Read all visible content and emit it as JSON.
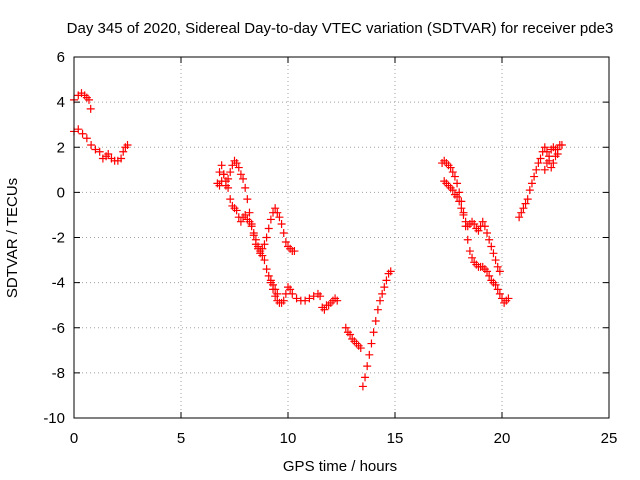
{
  "chart_data": {
    "type": "scatter",
    "title": "Day 345 of 2020, Sidereal Day-to-day VTEC variation (SDTVAR) for receiver pde3",
    "xlabel": "GPS time / hours",
    "ylabel": "SDTVAR / TECUs",
    "xlim": [
      0,
      25
    ],
    "ylim": [
      -10,
      6
    ],
    "xticks": [
      0,
      5,
      10,
      15,
      20,
      25
    ],
    "yticks": [
      -10,
      -8,
      -6,
      -4,
      -2,
      0,
      2,
      4,
      6
    ],
    "grid": true,
    "marker": "+",
    "color": "#ff0000",
    "segments": [
      [
        [
          0.0,
          4.1
        ],
        [
          0.2,
          4.3
        ],
        [
          0.35,
          4.4
        ],
        [
          0.5,
          4.3
        ],
        [
          0.6,
          4.2
        ],
        [
          0.7,
          4.1
        ],
        [
          0.78,
          3.7
        ]
      ],
      [
        [
          0.0,
          2.7
        ],
        [
          0.2,
          2.8
        ],
        [
          0.4,
          2.6
        ],
        [
          0.6,
          2.4
        ],
        [
          0.8,
          2.1
        ],
        [
          1.0,
          1.9
        ],
        [
          1.2,
          1.8
        ],
        [
          1.35,
          1.5
        ],
        [
          1.5,
          1.6
        ],
        [
          1.6,
          1.7
        ],
        [
          1.75,
          1.5
        ],
        [
          1.9,
          1.4
        ],
        [
          2.05,
          1.4
        ],
        [
          2.2,
          1.5
        ],
        [
          2.3,
          1.8
        ],
        [
          2.4,
          2.0
        ],
        [
          2.5,
          2.1
        ]
      ],
      [
        [
          6.7,
          0.4
        ],
        [
          6.8,
          0.9
        ],
        [
          6.9,
          1.2
        ],
        [
          7.0,
          0.8
        ],
        [
          7.1,
          0.3
        ],
        [
          7.2,
          0.6
        ],
        [
          7.3,
          0.9
        ],
        [
          7.4,
          1.2
        ],
        [
          7.5,
          1.4
        ],
        [
          7.6,
          1.3
        ],
        [
          7.7,
          1.1
        ],
        [
          7.8,
          0.8
        ],
        [
          7.9,
          0.6
        ],
        [
          8.0,
          0.2
        ],
        [
          8.1,
          -0.3
        ],
        [
          8.2,
          -0.9
        ],
        [
          8.3,
          -1.4
        ],
        [
          8.4,
          -1.9
        ],
        [
          8.5,
          -2.3
        ],
        [
          8.6,
          -2.5
        ],
        [
          8.7,
          -2.7
        ],
        [
          8.8,
          -2.8
        ],
        [
          8.9,
          -3.0
        ],
        [
          9.0,
          -3.4
        ],
        [
          9.1,
          -3.7
        ],
        [
          9.2,
          -3.9
        ],
        [
          9.3,
          -4.1
        ],
        [
          9.4,
          -4.3
        ],
        [
          9.5,
          -4.5
        ]
      ],
      [
        [
          6.8,
          0.3
        ],
        [
          6.9,
          0.5
        ],
        [
          7.0,
          0.8
        ],
        [
          7.1,
          0.5
        ],
        [
          7.2,
          0.2
        ],
        [
          7.3,
          -0.3
        ],
        [
          7.4,
          -0.6
        ],
        [
          7.5,
          -0.7
        ],
        [
          7.6,
          -0.8
        ],
        [
          7.7,
          -1.1
        ],
        [
          7.8,
          -1.3
        ],
        [
          7.9,
          -1.1
        ],
        [
          8.0,
          -1.0
        ],
        [
          8.1,
          -1.2
        ],
        [
          8.2,
          -1.3
        ],
        [
          8.3,
          -1.5
        ],
        [
          8.4,
          -1.8
        ],
        [
          8.5,
          -2.1
        ],
        [
          8.6,
          -2.4
        ],
        [
          8.7,
          -2.6
        ],
        [
          8.8,
          -2.5
        ],
        [
          8.9,
          -2.3
        ],
        [
          9.0,
          -2.0
        ],
        [
          9.1,
          -1.6
        ],
        [
          9.2,
          -1.2
        ],
        [
          9.3,
          -0.9
        ],
        [
          9.4,
          -0.7
        ],
        [
          9.5,
          -0.9
        ],
        [
          9.6,
          -1.1
        ],
        [
          9.7,
          -1.4
        ],
        [
          9.8,
          -1.8
        ],
        [
          9.9,
          -2.2
        ],
        [
          10.0,
          -2.4
        ],
        [
          10.1,
          -2.5
        ],
        [
          10.2,
          -2.6
        ],
        [
          10.3,
          -2.6
        ]
      ],
      [
        [
          9.2,
          -4.0
        ],
        [
          9.3,
          -4.3
        ],
        [
          9.4,
          -4.6
        ],
        [
          9.5,
          -4.8
        ],
        [
          9.6,
          -4.9
        ],
        [
          9.7,
          -4.9
        ],
        [
          9.8,
          -4.8
        ],
        [
          9.9,
          -4.5
        ],
        [
          10.0,
          -4.2
        ],
        [
          10.1,
          -4.3
        ],
        [
          10.2,
          -4.5
        ],
        [
          10.4,
          -4.7
        ],
        [
          10.6,
          -4.8
        ],
        [
          10.8,
          -4.8
        ],
        [
          11.0,
          -4.7
        ],
        [
          11.2,
          -4.6
        ],
        [
          11.4,
          -4.5
        ],
        [
          11.5,
          -4.6
        ]
      ],
      [
        [
          11.6,
          -5.1
        ],
        [
          11.7,
          -5.2
        ],
        [
          11.8,
          -5.0
        ],
        [
          11.9,
          -5.0
        ],
        [
          12.0,
          -4.9
        ],
        [
          12.1,
          -4.8
        ],
        [
          12.2,
          -4.7
        ],
        [
          12.3,
          -4.8
        ]
      ],
      [
        [
          12.7,
          -6.0
        ],
        [
          12.8,
          -6.2
        ],
        [
          12.9,
          -6.3
        ],
        [
          13.0,
          -6.5
        ],
        [
          13.1,
          -6.6
        ],
        [
          13.2,
          -6.7
        ],
        [
          13.3,
          -6.8
        ],
        [
          13.4,
          -6.9
        ]
      ],
      [
        [
          13.5,
          -8.6
        ],
        [
          13.6,
          -8.2
        ],
        [
          13.7,
          -7.7
        ],
        [
          13.8,
          -7.2
        ],
        [
          13.9,
          -6.7
        ],
        [
          14.0,
          -6.2
        ],
        [
          14.1,
          -5.7
        ],
        [
          14.2,
          -5.2
        ],
        [
          14.3,
          -4.8
        ],
        [
          14.4,
          -4.5
        ],
        [
          14.5,
          -4.2
        ],
        [
          14.6,
          -3.9
        ],
        [
          14.7,
          -3.6
        ],
        [
          14.8,
          -3.5
        ]
      ],
      [
        [
          17.2,
          1.3
        ],
        [
          17.3,
          1.4
        ],
        [
          17.4,
          1.3
        ],
        [
          17.5,
          1.2
        ],
        [
          17.6,
          1.1
        ],
        [
          17.7,
          0.9
        ],
        [
          17.8,
          0.7
        ],
        [
          17.9,
          0.4
        ],
        [
          18.0,
          0.0
        ],
        [
          18.1,
          -0.4
        ],
        [
          18.2,
          -0.9
        ],
        [
          18.3,
          -1.5
        ],
        [
          18.4,
          -2.1
        ],
        [
          18.5,
          -2.6
        ],
        [
          18.6,
          -2.9
        ],
        [
          18.7,
          -3.1
        ],
        [
          18.8,
          -3.2
        ],
        [
          18.9,
          -3.3
        ],
        [
          19.0,
          -3.3
        ],
        [
          19.1,
          -3.3
        ],
        [
          19.2,
          -3.4
        ],
        [
          19.3,
          -3.5
        ],
        [
          19.4,
          -3.7
        ],
        [
          19.5,
          -3.9
        ],
        [
          19.6,
          -4.0
        ],
        [
          19.7,
          -4.1
        ],
        [
          19.8,
          -4.3
        ],
        [
          19.9,
          -4.5
        ],
        [
          20.0,
          -4.7
        ],
        [
          20.1,
          -4.9
        ],
        [
          20.2,
          -4.8
        ],
        [
          20.3,
          -4.7
        ]
      ],
      [
        [
          17.3,
          0.5
        ],
        [
          17.4,
          0.4
        ],
        [
          17.5,
          0.3
        ],
        [
          17.6,
          0.2
        ],
        [
          17.7,
          0.1
        ],
        [
          17.8,
          -0.1
        ],
        [
          17.9,
          -0.2
        ],
        [
          18.0,
          -0.4
        ],
        [
          18.1,
          -0.7
        ],
        [
          18.2,
          -1.0
        ],
        [
          18.3,
          -1.3
        ],
        [
          18.4,
          -1.5
        ],
        [
          18.5,
          -1.4
        ],
        [
          18.6,
          -1.3
        ],
        [
          18.7,
          -1.4
        ],
        [
          18.8,
          -1.6
        ],
        [
          18.9,
          -1.7
        ],
        [
          19.0,
          -1.5
        ],
        [
          19.1,
          -1.3
        ],
        [
          19.2,
          -1.5
        ],
        [
          19.3,
          -1.8
        ],
        [
          19.4,
          -2.1
        ],
        [
          19.5,
          -2.4
        ],
        [
          19.6,
          -2.7
        ],
        [
          19.7,
          -3.0
        ],
        [
          19.8,
          -3.3
        ],
        [
          19.9,
          -3.5
        ]
      ],
      [
        [
          20.8,
          -1.1
        ],
        [
          20.9,
          -0.9
        ],
        [
          21.0,
          -0.7
        ],
        [
          21.1,
          -0.5
        ],
        [
          21.2,
          -0.3
        ],
        [
          21.3,
          0.1
        ],
        [
          21.4,
          0.4
        ],
        [
          21.5,
          0.7
        ],
        [
          21.6,
          1.0
        ],
        [
          21.7,
          1.3
        ],
        [
          21.8,
          1.5
        ],
        [
          21.9,
          1.8
        ],
        [
          22.0,
          2.0
        ],
        [
          22.1,
          1.8
        ],
        [
          22.2,
          1.4
        ],
        [
          22.3,
          1.1
        ],
        [
          22.4,
          1.3
        ],
        [
          22.5,
          1.6
        ],
        [
          22.6,
          1.9
        ],
        [
          22.7,
          2.1
        ],
        [
          22.8,
          2.1
        ]
      ],
      [
        [
          22.0,
          1.0
        ],
        [
          22.1,
          1.3
        ],
        [
          22.2,
          1.6
        ],
        [
          22.3,
          1.9
        ],
        [
          22.4,
          2.0
        ],
        [
          22.5,
          1.9
        ],
        [
          22.6,
          1.7
        ]
      ]
    ]
  }
}
